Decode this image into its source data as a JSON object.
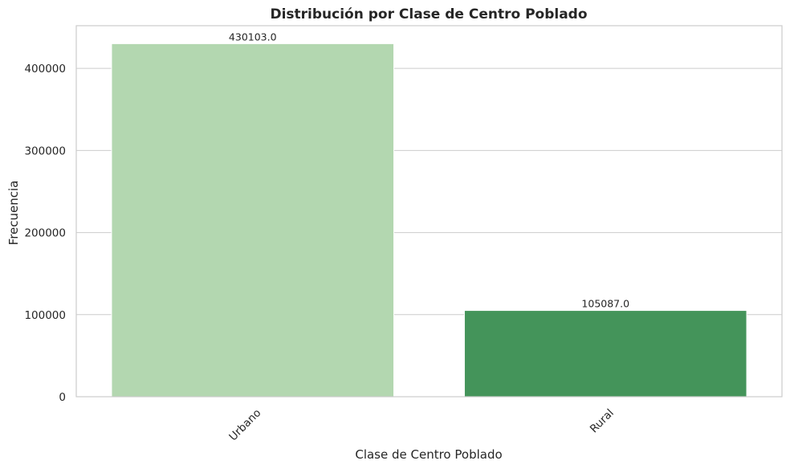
{
  "chart_data": {
    "type": "bar",
    "title": "Distribución por Clase de Centro Poblado",
    "xlabel": "Clase de Centro Poblado",
    "ylabel": "Frecuencia",
    "categories": [
      "Urbano",
      "Rural"
    ],
    "values": [
      430103.0,
      105087.0
    ],
    "data_labels": [
      "430103.0",
      "105087.0"
    ],
    "colors": [
      "#b3d7b0",
      "#44945a"
    ],
    "ylim": [
      0,
      452000
    ],
    "yticks": [
      0,
      100000,
      200000,
      300000,
      400000
    ],
    "ytick_labels": [
      "0",
      "100000",
      "200000",
      "300000",
      "400000"
    ],
    "grid": true,
    "xtick_rotation": -45
  }
}
